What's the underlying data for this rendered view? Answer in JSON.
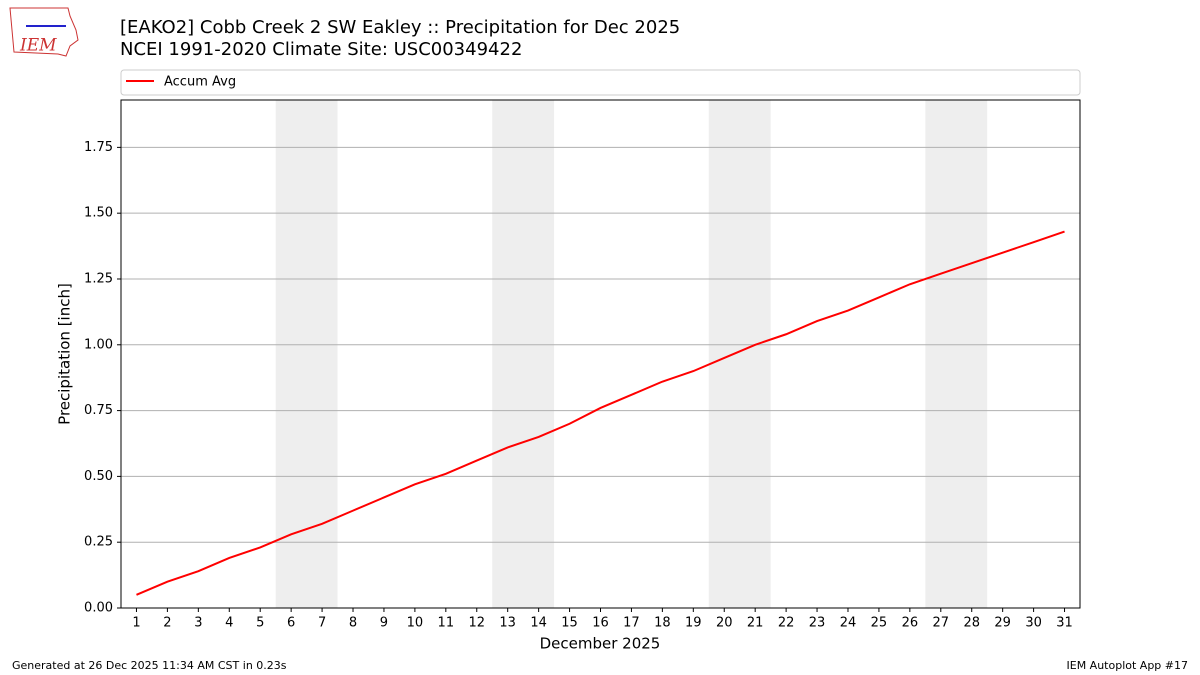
{
  "logo": "IEM",
  "footer": {
    "left": "Generated at 26 Dec 2025 11:34 AM CST in 0.23s",
    "right": "IEM Autoplot App #17"
  },
  "chart_data": {
    "type": "line",
    "title": "[EAKO2] Cobb Creek 2 SW Eakley :: Precipitation for Dec 2025",
    "subtitle": "NCEI 1991-2020 Climate Site: USC00349422",
    "xlabel": "December 2025",
    "ylabel": "Precipitation [inch]",
    "x": [
      1,
      2,
      3,
      4,
      5,
      6,
      7,
      8,
      9,
      10,
      11,
      12,
      13,
      14,
      15,
      16,
      17,
      18,
      19,
      20,
      21,
      22,
      23,
      24,
      25,
      26,
      27,
      28,
      29,
      30,
      31
    ],
    "series": [
      {
        "name": "Accum Avg",
        "color": "#ff0000",
        "values": [
          0.05,
          0.1,
          0.14,
          0.19,
          0.23,
          0.28,
          0.32,
          0.37,
          0.42,
          0.47,
          0.51,
          0.56,
          0.61,
          0.65,
          0.7,
          0.76,
          0.81,
          0.86,
          0.9,
          0.95,
          1.0,
          1.04,
          1.09,
          1.13,
          1.18,
          1.23,
          1.27,
          1.31,
          1.35,
          1.39,
          1.43
        ]
      }
    ],
    "weekend_spans": [
      [
        5.5,
        7.5
      ],
      [
        12.5,
        14.5
      ],
      [
        19.5,
        21.5
      ],
      [
        26.5,
        28.5
      ]
    ],
    "span_color": "#eeeeee",
    "xlim": [
      0.5,
      31.5
    ],
    "ylim": [
      0,
      1.93
    ],
    "xticks": [
      1,
      2,
      3,
      4,
      5,
      6,
      7,
      8,
      9,
      10,
      11,
      12,
      13,
      14,
      15,
      16,
      17,
      18,
      19,
      20,
      21,
      22,
      23,
      24,
      25,
      26,
      27,
      28,
      29,
      30,
      31
    ],
    "yticks": [
      {
        "value": 0,
        "label": "0.00"
      },
      {
        "value": 0.25,
        "label": "0.25"
      },
      {
        "value": 0.5,
        "label": "0.50"
      },
      {
        "value": 0.75,
        "label": "0.75"
      },
      {
        "value": 1,
        "label": "1.00"
      },
      {
        "value": 1.25,
        "label": "1.25"
      },
      {
        "value": 1.5,
        "label": "1.50"
      },
      {
        "value": 1.75,
        "label": "1.75"
      }
    ],
    "grid": true,
    "legend": "top"
  }
}
